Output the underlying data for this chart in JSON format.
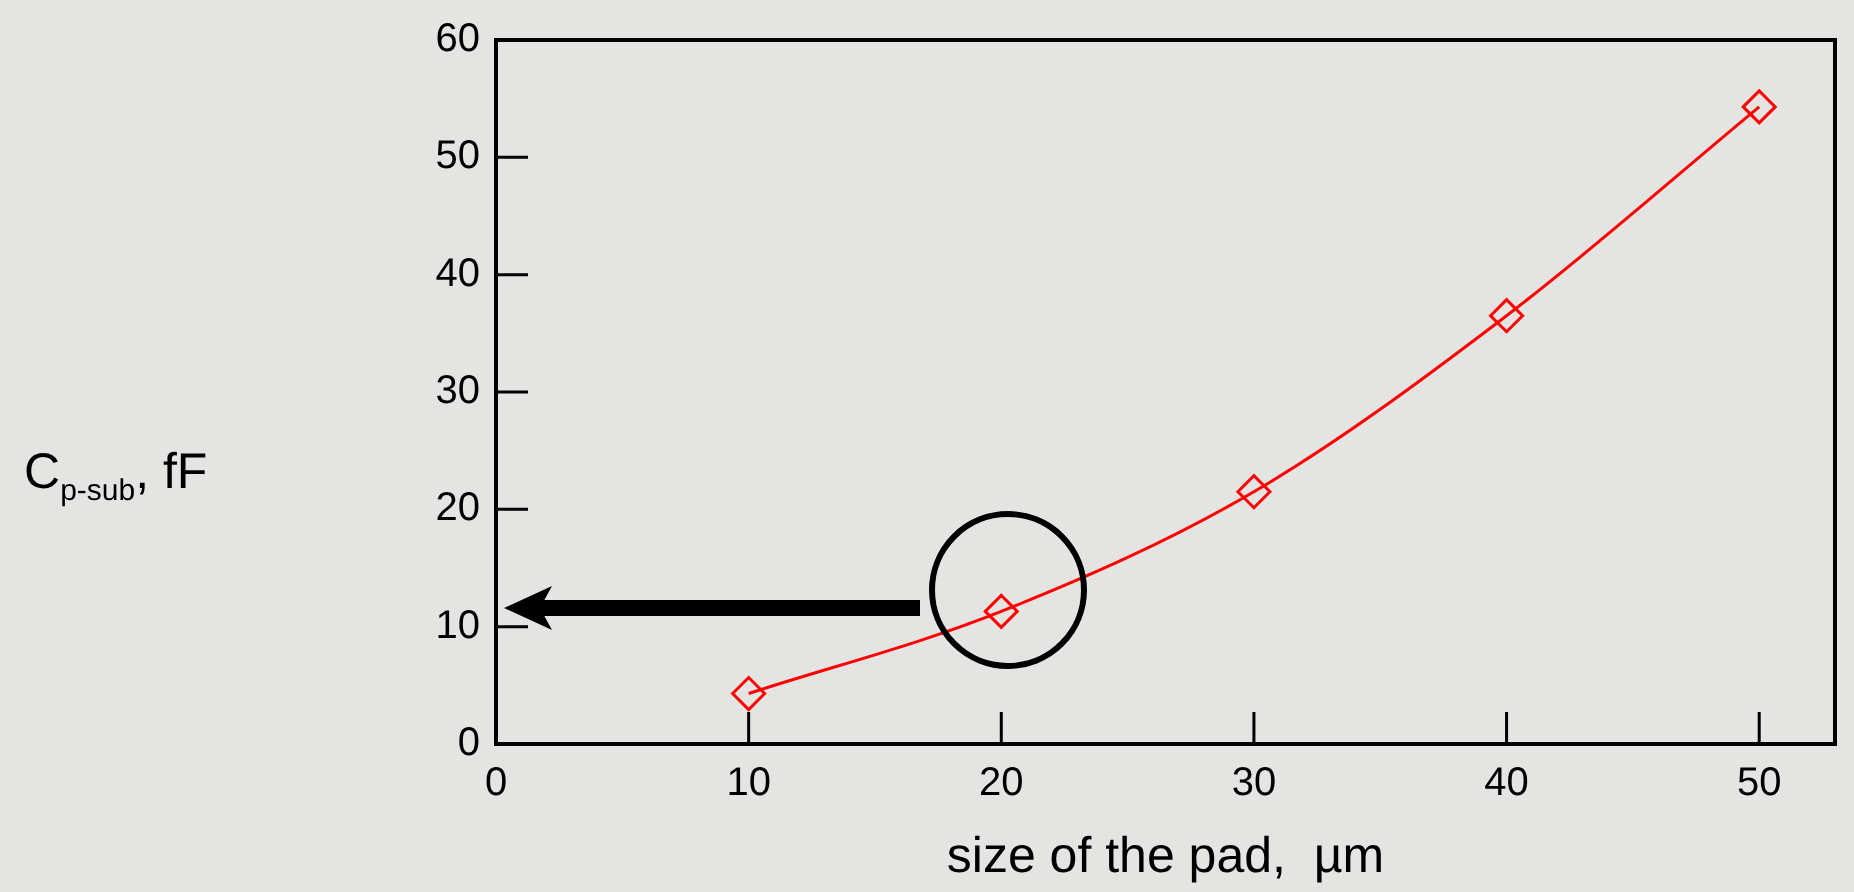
{
  "chart_data": {
    "type": "line",
    "xlabel": "size of the pad,  µm",
    "ylabel": "C$_{p-sub}$, fF",
    "x": [
      10,
      20,
      30,
      40,
      50
    ],
    "series": [
      {
        "color": "#ff0000",
        "values": [
          4.3,
          11.3,
          21.5,
          36.5,
          54.3
        ]
      }
    ],
    "xlim": [
      0,
      53
    ],
    "xticks": [
      0,
      10,
      20,
      30,
      40,
      50
    ],
    "ylim": [
      0,
      60
    ],
    "yticks": [
      0,
      10,
      20,
      30,
      40,
      50,
      60
    ],
    "grid": false,
    "legend": false,
    "marker": "diamond",
    "line_style": "solid"
  }
}
